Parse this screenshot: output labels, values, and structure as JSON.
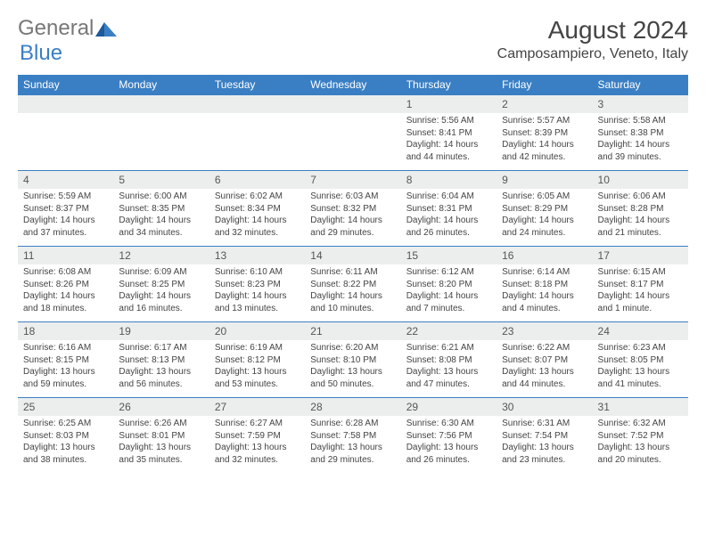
{
  "brand": {
    "part1": "General",
    "part2": "Blue"
  },
  "title": "August 2024",
  "location": "Camposampiero, Veneto, Italy",
  "colors": {
    "header_bg": "#3a7fc4",
    "header_text": "#ffffff",
    "daynum_bg": "#eceeee",
    "border": "#3a7fc4",
    "text": "#444444"
  },
  "weekdays": [
    "Sunday",
    "Monday",
    "Tuesday",
    "Wednesday",
    "Thursday",
    "Friday",
    "Saturday"
  ],
  "weeks": [
    [
      null,
      null,
      null,
      null,
      {
        "n": "1",
        "sr": "Sunrise: 5:56 AM",
        "ss": "Sunset: 8:41 PM",
        "d1": "Daylight: 14 hours",
        "d2": "and 44 minutes."
      },
      {
        "n": "2",
        "sr": "Sunrise: 5:57 AM",
        "ss": "Sunset: 8:39 PM",
        "d1": "Daylight: 14 hours",
        "d2": "and 42 minutes."
      },
      {
        "n": "3",
        "sr": "Sunrise: 5:58 AM",
        "ss": "Sunset: 8:38 PM",
        "d1": "Daylight: 14 hours",
        "d2": "and 39 minutes."
      }
    ],
    [
      {
        "n": "4",
        "sr": "Sunrise: 5:59 AM",
        "ss": "Sunset: 8:37 PM",
        "d1": "Daylight: 14 hours",
        "d2": "and 37 minutes."
      },
      {
        "n": "5",
        "sr": "Sunrise: 6:00 AM",
        "ss": "Sunset: 8:35 PM",
        "d1": "Daylight: 14 hours",
        "d2": "and 34 minutes."
      },
      {
        "n": "6",
        "sr": "Sunrise: 6:02 AM",
        "ss": "Sunset: 8:34 PM",
        "d1": "Daylight: 14 hours",
        "d2": "and 32 minutes."
      },
      {
        "n": "7",
        "sr": "Sunrise: 6:03 AM",
        "ss": "Sunset: 8:32 PM",
        "d1": "Daylight: 14 hours",
        "d2": "and 29 minutes."
      },
      {
        "n": "8",
        "sr": "Sunrise: 6:04 AM",
        "ss": "Sunset: 8:31 PM",
        "d1": "Daylight: 14 hours",
        "d2": "and 26 minutes."
      },
      {
        "n": "9",
        "sr": "Sunrise: 6:05 AM",
        "ss": "Sunset: 8:29 PM",
        "d1": "Daylight: 14 hours",
        "d2": "and 24 minutes."
      },
      {
        "n": "10",
        "sr": "Sunrise: 6:06 AM",
        "ss": "Sunset: 8:28 PM",
        "d1": "Daylight: 14 hours",
        "d2": "and 21 minutes."
      }
    ],
    [
      {
        "n": "11",
        "sr": "Sunrise: 6:08 AM",
        "ss": "Sunset: 8:26 PM",
        "d1": "Daylight: 14 hours",
        "d2": "and 18 minutes."
      },
      {
        "n": "12",
        "sr": "Sunrise: 6:09 AM",
        "ss": "Sunset: 8:25 PM",
        "d1": "Daylight: 14 hours",
        "d2": "and 16 minutes."
      },
      {
        "n": "13",
        "sr": "Sunrise: 6:10 AM",
        "ss": "Sunset: 8:23 PM",
        "d1": "Daylight: 14 hours",
        "d2": "and 13 minutes."
      },
      {
        "n": "14",
        "sr": "Sunrise: 6:11 AM",
        "ss": "Sunset: 8:22 PM",
        "d1": "Daylight: 14 hours",
        "d2": "and 10 minutes."
      },
      {
        "n": "15",
        "sr": "Sunrise: 6:12 AM",
        "ss": "Sunset: 8:20 PM",
        "d1": "Daylight: 14 hours",
        "d2": "and 7 minutes."
      },
      {
        "n": "16",
        "sr": "Sunrise: 6:14 AM",
        "ss": "Sunset: 8:18 PM",
        "d1": "Daylight: 14 hours",
        "d2": "and 4 minutes."
      },
      {
        "n": "17",
        "sr": "Sunrise: 6:15 AM",
        "ss": "Sunset: 8:17 PM",
        "d1": "Daylight: 14 hours",
        "d2": "and 1 minute."
      }
    ],
    [
      {
        "n": "18",
        "sr": "Sunrise: 6:16 AM",
        "ss": "Sunset: 8:15 PM",
        "d1": "Daylight: 13 hours",
        "d2": "and 59 minutes."
      },
      {
        "n": "19",
        "sr": "Sunrise: 6:17 AM",
        "ss": "Sunset: 8:13 PM",
        "d1": "Daylight: 13 hours",
        "d2": "and 56 minutes."
      },
      {
        "n": "20",
        "sr": "Sunrise: 6:19 AM",
        "ss": "Sunset: 8:12 PM",
        "d1": "Daylight: 13 hours",
        "d2": "and 53 minutes."
      },
      {
        "n": "21",
        "sr": "Sunrise: 6:20 AM",
        "ss": "Sunset: 8:10 PM",
        "d1": "Daylight: 13 hours",
        "d2": "and 50 minutes."
      },
      {
        "n": "22",
        "sr": "Sunrise: 6:21 AM",
        "ss": "Sunset: 8:08 PM",
        "d1": "Daylight: 13 hours",
        "d2": "and 47 minutes."
      },
      {
        "n": "23",
        "sr": "Sunrise: 6:22 AM",
        "ss": "Sunset: 8:07 PM",
        "d1": "Daylight: 13 hours",
        "d2": "and 44 minutes."
      },
      {
        "n": "24",
        "sr": "Sunrise: 6:23 AM",
        "ss": "Sunset: 8:05 PM",
        "d1": "Daylight: 13 hours",
        "d2": "and 41 minutes."
      }
    ],
    [
      {
        "n": "25",
        "sr": "Sunrise: 6:25 AM",
        "ss": "Sunset: 8:03 PM",
        "d1": "Daylight: 13 hours",
        "d2": "and 38 minutes."
      },
      {
        "n": "26",
        "sr": "Sunrise: 6:26 AM",
        "ss": "Sunset: 8:01 PM",
        "d1": "Daylight: 13 hours",
        "d2": "and 35 minutes."
      },
      {
        "n": "27",
        "sr": "Sunrise: 6:27 AM",
        "ss": "Sunset: 7:59 PM",
        "d1": "Daylight: 13 hours",
        "d2": "and 32 minutes."
      },
      {
        "n": "28",
        "sr": "Sunrise: 6:28 AM",
        "ss": "Sunset: 7:58 PM",
        "d1": "Daylight: 13 hours",
        "d2": "and 29 minutes."
      },
      {
        "n": "29",
        "sr": "Sunrise: 6:30 AM",
        "ss": "Sunset: 7:56 PM",
        "d1": "Daylight: 13 hours",
        "d2": "and 26 minutes."
      },
      {
        "n": "30",
        "sr": "Sunrise: 6:31 AM",
        "ss": "Sunset: 7:54 PM",
        "d1": "Daylight: 13 hours",
        "d2": "and 23 minutes."
      },
      {
        "n": "31",
        "sr": "Sunrise: 6:32 AM",
        "ss": "Sunset: 7:52 PM",
        "d1": "Daylight: 13 hours",
        "d2": "and 20 minutes."
      }
    ]
  ]
}
